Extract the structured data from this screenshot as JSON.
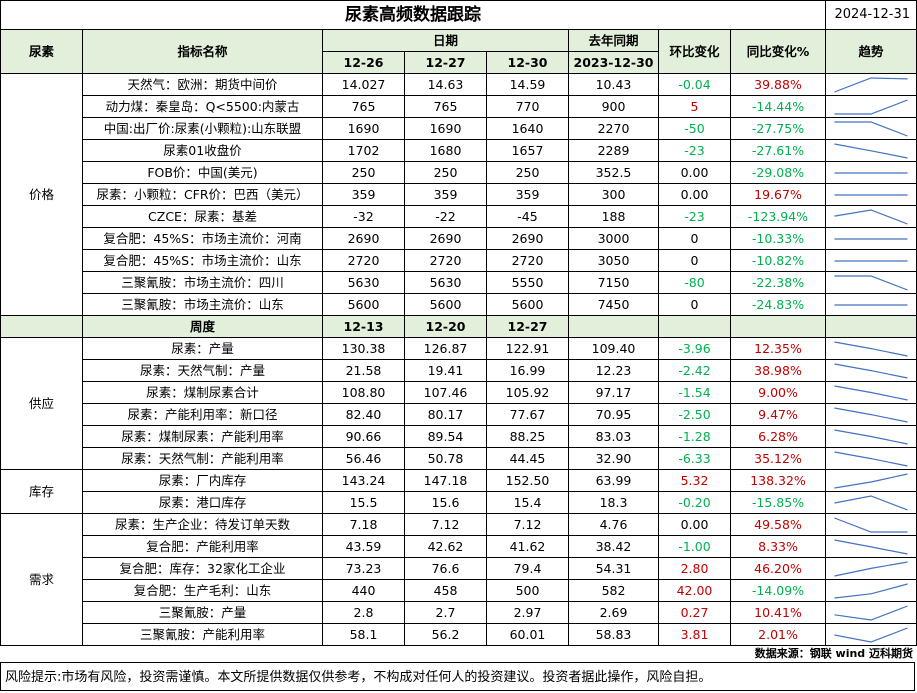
{
  "title": "尿素高频数据跟踪",
  "date": "2024-12-31",
  "header": {
    "product": "尿素",
    "indicator": "指标名称",
    "date_group": "日期",
    "last_year": "去年同期",
    "mom": "环比变化",
    "yoy": "同比变化%",
    "trend": "趋势",
    "dates": [
      "12-26",
      "12-27",
      "12-30"
    ],
    "last_year_date": "2023-12-30"
  },
  "sub_header": {
    "label": "周度",
    "dates": [
      "12-13",
      "12-20",
      "12-27"
    ]
  },
  "colors": {
    "header_bg": "#e2efda",
    "up": "#c00000",
    "down": "#00b050",
    "sparkline": "#4472c4"
  },
  "sections": [
    {
      "name": "价格",
      "rows": [
        {
          "name": "天然气：欧洲：期货中间价",
          "v": [
            "14.027",
            "14.63",
            "14.59"
          ],
          "ly": "10.43",
          "mom": "-0.04",
          "yoy": "39.88%"
        },
        {
          "name": "动力煤：秦皇岛：Q<5500:内蒙古",
          "v": [
            "765",
            "765",
            "770"
          ],
          "ly": "900",
          "mom": "5",
          "yoy": "-14.44%"
        },
        {
          "name": "中国:出厂价:尿素(小颗粒):山东联盟",
          "v": [
            "1690",
            "1690",
            "1640"
          ],
          "ly": "2270",
          "mom": "-50",
          "yoy": "-27.75%"
        },
        {
          "name": "尿素01收盘价",
          "v": [
            "1702",
            "1680",
            "1657"
          ],
          "ly": "2289",
          "mom": "-23",
          "yoy": "-27.61%"
        },
        {
          "name": "FOB价：中国(美元)",
          "v": [
            "250",
            "250",
            "250"
          ],
          "ly": "352.5",
          "mom": "0.00",
          "yoy": "-29.08%"
        },
        {
          "name": "尿素：小颗粒：CFR价：巴西（美元）",
          "v": [
            "359",
            "359",
            "359"
          ],
          "ly": "300",
          "mom": "0.00",
          "yoy": "19.67%"
        },
        {
          "name": "CZCE：尿素：基差",
          "v": [
            "-32",
            "-22",
            "-45"
          ],
          "ly": "188",
          "mom": "-23",
          "yoy": "-123.94%"
        },
        {
          "name": "复合肥：45%S：市场主流价：河南",
          "v": [
            "2690",
            "2690",
            "2690"
          ],
          "ly": "3000",
          "mom": "0",
          "yoy": "-10.33%"
        },
        {
          "name": "复合肥：45%S：市场主流价：山东",
          "v": [
            "2720",
            "2720",
            "2720"
          ],
          "ly": "3050",
          "mom": "0",
          "yoy": "-10.82%"
        },
        {
          "name": "三聚氰胺：市场主流价：四川",
          "v": [
            "5630",
            "5630",
            "5550"
          ],
          "ly": "7150",
          "mom": "-80",
          "yoy": "-22.38%"
        },
        {
          "name": "三聚氰胺：市场主流价：山东",
          "v": [
            "5600",
            "5600",
            "5600"
          ],
          "ly": "7450",
          "mom": "0",
          "yoy": "-24.83%"
        }
      ]
    },
    {
      "name": "供应",
      "rows": [
        {
          "name": "尿素：产量",
          "v": [
            "130.38",
            "126.87",
            "122.91"
          ],
          "ly": "109.40",
          "mom": "-3.96",
          "yoy": "12.35%"
        },
        {
          "name": "尿素：天然气制：产量",
          "v": [
            "21.58",
            "19.41",
            "16.99"
          ],
          "ly": "12.23",
          "mom": "-2.42",
          "yoy": "38.98%"
        },
        {
          "name": "尿素：煤制尿素合计",
          "v": [
            "108.80",
            "107.46",
            "105.92"
          ],
          "ly": "97.17",
          "mom": "-1.54",
          "yoy": "9.00%"
        },
        {
          "name": "尿素：产能利用率：新口径",
          "v": [
            "82.40",
            "80.17",
            "77.67"
          ],
          "ly": "70.95",
          "mom": "-2.50",
          "yoy": "9.47%"
        },
        {
          "name": "尿素：煤制尿素：产能利用率",
          "v": [
            "90.66",
            "89.54",
            "88.25"
          ],
          "ly": "83.03",
          "mom": "-1.28",
          "yoy": "6.28%"
        },
        {
          "name": "尿素：天然气制：产能利用率",
          "v": [
            "56.46",
            "50.78",
            "44.45"
          ],
          "ly": "32.90",
          "mom": "-6.33",
          "yoy": "35.12%"
        }
      ]
    },
    {
      "name": "库存",
      "rows": [
        {
          "name": "尿素：厂内库存",
          "v": [
            "143.24",
            "147.18",
            "152.50"
          ],
          "ly": "63.99",
          "mom": "5.32",
          "yoy": "138.32%"
        },
        {
          "name": "尿素：港口库存",
          "v": [
            "15.5",
            "15.6",
            "15.4"
          ],
          "ly": "18.3",
          "mom": "-0.20",
          "yoy": "-15.85%"
        }
      ]
    },
    {
      "name": "需求",
      "rows": [
        {
          "name": "尿素：生产企业：待发订单天数",
          "v": [
            "7.18",
            "7.12",
            "7.12"
          ],
          "ly": "4.76",
          "mom": "0.00",
          "yoy": "49.58%"
        },
        {
          "name": "复合肥：产能利用率",
          "v": [
            "43.59",
            "42.62",
            "41.62"
          ],
          "ly": "38.42",
          "mom": "-1.00",
          "yoy": "8.33%"
        },
        {
          "name": "复合肥：库存：32家化工企业",
          "v": [
            "73.23",
            "76.6",
            "79.4"
          ],
          "ly": "54.31",
          "mom": "2.80",
          "yoy": "46.20%"
        },
        {
          "name": "复合肥：生产毛利：山东",
          "v": [
            "440",
            "458",
            "500"
          ],
          "ly": "582",
          "mom": "42.00",
          "yoy": "-14.09%"
        },
        {
          "name": "三聚氰胺：产量",
          "v": [
            "2.8",
            "2.7",
            "2.97"
          ],
          "ly": "2.69",
          "mom": "0.27",
          "yoy": "10.41%"
        },
        {
          "name": "三聚氰胺：产能利用率",
          "v": [
            "58.1",
            "56.2",
            "60.01"
          ],
          "ly": "58.83",
          "mom": "3.81",
          "yoy": "2.01%"
        }
      ]
    }
  ],
  "source_note": "数据来源：钢联 wind 迈科期货",
  "risk_note": "风险提示:市场有风险，投资需谨慎。本文所提供数据仅供参考，不构成对任何人的投资建议。投资者据此操作，风险自担。"
}
